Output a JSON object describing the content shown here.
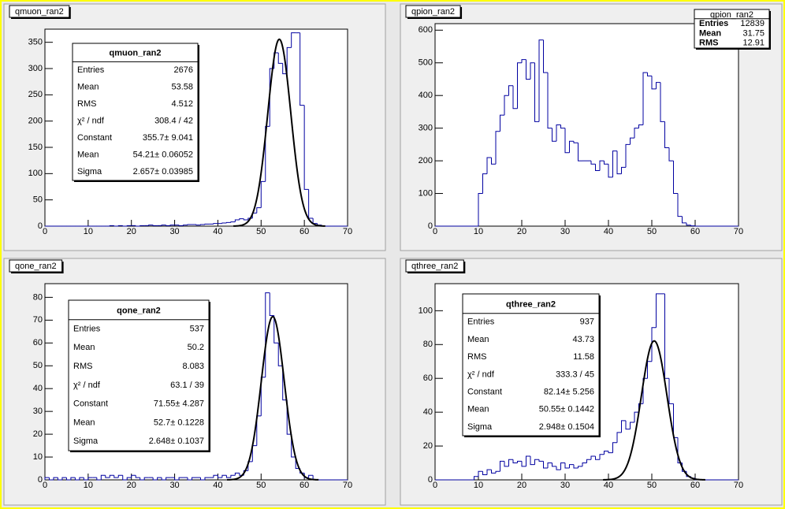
{
  "chart_data": [
    {
      "type": "histogram",
      "title": "qmuon_ran2",
      "color": "#0000a0",
      "bins": [
        0,
        1,
        2,
        3,
        4,
        5,
        6,
        7,
        8,
        9,
        10,
        11,
        12,
        13,
        14,
        15,
        16,
        17,
        18,
        19,
        20,
        21,
        22,
        23,
        24,
        25,
        26,
        27,
        28,
        29,
        30,
        31,
        32,
        33,
        34,
        35,
        36,
        37,
        38,
        39,
        40,
        41,
        42,
        43,
        44,
        45,
        46,
        47,
        48,
        49,
        50,
        51,
        52,
        53,
        54,
        55,
        56,
        57,
        58,
        59,
        60,
        61,
        62,
        63,
        64,
        65,
        66,
        67,
        68,
        69,
        70
      ],
      "values": [
        0,
        0,
        0,
        0,
        0,
        0,
        0,
        0,
        0,
        0,
        0,
        0,
        0,
        0,
        0,
        1,
        0,
        1,
        0,
        1,
        1,
        0,
        1,
        1,
        2,
        1,
        1,
        2,
        1,
        2,
        2,
        1,
        2,
        3,
        3,
        2,
        3,
        4,
        4,
        5,
        5,
        6,
        7,
        8,
        12,
        14,
        12,
        15,
        25,
        35,
        85,
        190,
        300,
        330,
        310,
        290,
        340,
        368,
        368,
        230,
        70,
        15,
        5,
        2,
        0,
        0,
        0,
        0,
        0,
        0
      ],
      "xlim": [
        0,
        70
      ],
      "ylim": [
        0,
        375
      ],
      "xticks": [
        0,
        10,
        20,
        30,
        40,
        50,
        60,
        70
      ],
      "yticks": [
        0,
        50,
        100,
        150,
        200,
        250,
        300,
        350
      ],
      "fit": {
        "constant": 355.7,
        "mean": 54.21,
        "sigma": 2.657
      },
      "stats_title": "qmuon_ran2",
      "stats": [
        {
          "label": "Entries",
          "value": "2676"
        },
        {
          "label": "Mean",
          "value": "53.58"
        },
        {
          "label": "RMS",
          "value": "4.512"
        },
        {
          "label": "χ² / ndf",
          "value": "308.4 / 42"
        },
        {
          "label": "Constant",
          "value": "355.7± 9.041"
        },
        {
          "label": "Mean",
          "value": "54.21± 0.06052"
        },
        {
          "label": "Sigma",
          "value": "2.657± 0.03985"
        }
      ]
    },
    {
      "type": "histogram",
      "title": "qpion_ran2",
      "color": "#0000a0",
      "bins": [
        0,
        1,
        2,
        3,
        4,
        5,
        6,
        7,
        8,
        9,
        10,
        11,
        12,
        13,
        14,
        15,
        16,
        17,
        18,
        19,
        20,
        21,
        22,
        23,
        24,
        25,
        26,
        27,
        28,
        29,
        30,
        31,
        32,
        33,
        34,
        35,
        36,
        37,
        38,
        39,
        40,
        41,
        42,
        43,
        44,
        45,
        46,
        47,
        48,
        49,
        50,
        51,
        52,
        53,
        54,
        55,
        56,
        57,
        58,
        59,
        60,
        61,
        62,
        63,
        64,
        65,
        66,
        67,
        68,
        69,
        70
      ],
      "values": [
        0,
        0,
        0,
        0,
        0,
        0,
        0,
        0,
        0,
        0,
        100,
        160,
        210,
        190,
        290,
        340,
        400,
        430,
        360,
        500,
        510,
        450,
        500,
        320,
        570,
        470,
        300,
        260,
        310,
        300,
        225,
        260,
        255,
        200,
        200,
        200,
        190,
        170,
        200,
        190,
        150,
        230,
        160,
        180,
        250,
        270,
        300,
        310,
        470,
        460,
        420,
        440,
        320,
        240,
        200,
        100,
        30,
        10,
        3,
        1,
        0,
        0,
        0,
        0,
        0,
        0,
        0,
        0,
        0,
        0
      ],
      "xlim": [
        0,
        70
      ],
      "ylim": [
        0,
        620
      ],
      "xticks": [
        0,
        10,
        20,
        30,
        40,
        50,
        60,
        70
      ],
      "yticks": [
        0,
        100,
        200,
        300,
        400,
        500,
        600
      ],
      "stats_title": "qpion_ran2",
      "stats": [
        {
          "label": "Entries",
          "value": "12839"
        },
        {
          "label": "Mean",
          "value": "31.75"
        },
        {
          "label": "RMS",
          "value": "12.91"
        }
      ]
    },
    {
      "type": "histogram",
      "title": "qone_ran2",
      "color": "#0000a0",
      "bins": [
        0,
        1,
        2,
        3,
        4,
        5,
        6,
        7,
        8,
        9,
        10,
        11,
        12,
        13,
        14,
        15,
        16,
        17,
        18,
        19,
        20,
        21,
        22,
        23,
        24,
        25,
        26,
        27,
        28,
        29,
        30,
        31,
        32,
        33,
        34,
        35,
        36,
        37,
        38,
        39,
        40,
        41,
        42,
        43,
        44,
        45,
        46,
        47,
        48,
        49,
        50,
        51,
        52,
        53,
        54,
        55,
        56,
        57,
        58,
        59,
        60,
        61,
        62,
        63,
        64,
        65,
        66,
        67,
        68,
        69,
        70
      ],
      "values": [
        1,
        0,
        1,
        0,
        1,
        0,
        1,
        0,
        1,
        0,
        1,
        1,
        0,
        2,
        1,
        2,
        1,
        2,
        0,
        1,
        2,
        1,
        0,
        1,
        1,
        0,
        1,
        0,
        1,
        1,
        0,
        1,
        1,
        0,
        1,
        1,
        0,
        1,
        1,
        2,
        1,
        2,
        1,
        2,
        3,
        2,
        4,
        8,
        15,
        28,
        45,
        82,
        72,
        60,
        50,
        35,
        20,
        10,
        5,
        3,
        1,
        2,
        0,
        0,
        0,
        0,
        0,
        0,
        0,
        0
      ],
      "xlim": [
        0,
        70
      ],
      "ylim": [
        0,
        86
      ],
      "xticks": [
        0,
        10,
        20,
        30,
        40,
        50,
        60,
        70
      ],
      "yticks": [
        0,
        10,
        20,
        30,
        40,
        50,
        60,
        70,
        80
      ],
      "fit": {
        "constant": 71.55,
        "mean": 52.7,
        "sigma": 2.648
      },
      "stats_title": "qone_ran2",
      "stats": [
        {
          "label": "Entries",
          "value": "537"
        },
        {
          "label": "Mean",
          "value": "50.2"
        },
        {
          "label": "RMS",
          "value": "8.083"
        },
        {
          "label": "χ² / ndf",
          "value": "63.1 / 39"
        },
        {
          "label": "Constant",
          "value": "71.55± 4.287"
        },
        {
          "label": "Mean",
          "value": "52.7± 0.1228"
        },
        {
          "label": "Sigma",
          "value": "2.648± 0.1037"
        }
      ]
    },
    {
      "type": "histogram",
      "title": "qthree_ran2",
      "color": "#0000a0",
      "bins": [
        0,
        1,
        2,
        3,
        4,
        5,
        6,
        7,
        8,
        9,
        10,
        11,
        12,
        13,
        14,
        15,
        16,
        17,
        18,
        19,
        20,
        21,
        22,
        23,
        24,
        25,
        26,
        27,
        28,
        29,
        30,
        31,
        32,
        33,
        34,
        35,
        36,
        37,
        38,
        39,
        40,
        41,
        42,
        43,
        44,
        45,
        46,
        47,
        48,
        49,
        50,
        51,
        52,
        53,
        54,
        55,
        56,
        57,
        58,
        59,
        60,
        61,
        62,
        63,
        64,
        65,
        66,
        67,
        68,
        69,
        70
      ],
      "values": [
        0,
        0,
        0,
        0,
        0,
        0,
        0,
        0,
        0,
        2,
        5,
        3,
        6,
        4,
        5,
        11,
        8,
        12,
        10,
        11,
        8,
        14,
        9,
        12,
        11,
        7,
        10,
        8,
        6,
        10,
        7,
        9,
        7,
        8,
        10,
        12,
        14,
        12,
        15,
        17,
        16,
        22,
        28,
        35,
        30,
        34,
        40,
        45,
        60,
        70,
        90,
        110,
        110,
        60,
        45,
        25,
        10,
        5,
        2,
        1,
        0,
        0,
        0,
        0,
        0,
        0,
        0,
        0,
        0,
        0
      ],
      "xlim": [
        0,
        70
      ],
      "ylim": [
        0,
        116
      ],
      "xticks": [
        0,
        10,
        20,
        30,
        40,
        50,
        60,
        70
      ],
      "yticks": [
        0,
        20,
        40,
        60,
        80,
        100
      ],
      "fit": {
        "constant": 82.14,
        "mean": 50.55,
        "sigma": 2.948
      },
      "stats_title": "qthree_ran2",
      "stats": [
        {
          "label": "Entries",
          "value": "937"
        },
        {
          "label": "Mean",
          "value": "43.73"
        },
        {
          "label": "RMS",
          "value": "11.58"
        },
        {
          "label": "χ² / ndf",
          "value": "333.3 / 45"
        },
        {
          "label": "Constant",
          "value": "82.14± 5.256"
        },
        {
          "label": "Mean",
          "value": "50.55± 0.1442"
        },
        {
          "label": "Sigma",
          "value": "2.948± 0.1504"
        }
      ]
    }
  ]
}
